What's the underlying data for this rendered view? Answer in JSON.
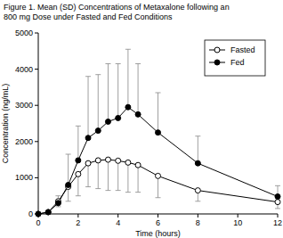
{
  "chart_data": {
    "type": "line",
    "title": "Figure 1.  Mean (SD) Concentrations of Metaxalone following an\n800 mg Dose  under Fasted and Fed Conditions",
    "x_label": "Time (hours)",
    "y_label": "Concentration (ng/mL)",
    "x": [
      0,
      0.5,
      1,
      1.5,
      2,
      2.5,
      3,
      3.5,
      4,
      4.5,
      5,
      6,
      8,
      12
    ],
    "series": [
      {
        "name": "Fasted",
        "color": "#000000",
        "marker": "open-circle",
        "line_style": "solid",
        "values": [
          0,
          50,
          350,
          750,
          1100,
          1400,
          1480,
          1500,
          1470,
          1420,
          1350,
          1050,
          650,
          330
        ],
        "errors": [
          0,
          20,
          150,
          400,
          600,
          650,
          780,
          850,
          820,
          820,
          750,
          600,
          300,
          180
        ]
      },
      {
        "name": "Fed",
        "color": "#000000",
        "marker": "filled-circle",
        "line_style": "solid",
        "values": [
          0,
          50,
          300,
          800,
          1480,
          2100,
          2300,
          2550,
          2650,
          2950,
          2750,
          2250,
          1400,
          480
        ],
        "errors": [
          0,
          20,
          200,
          850,
          950,
          1700,
          1550,
          1600,
          1500,
          1600,
          1400,
          1100,
          750,
          300
        ]
      }
    ],
    "xlim": [
      0,
      12
    ],
    "xticks": [
      0,
      2,
      4,
      6,
      8,
      10,
      12
    ],
    "ylim": [
      0,
      5000
    ],
    "yticks": [
      0,
      1000,
      2000,
      3000,
      4000,
      5000
    ],
    "grid": false,
    "legend": "top-right"
  }
}
